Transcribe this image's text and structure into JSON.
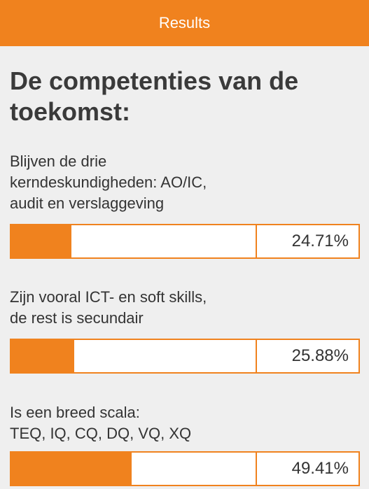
{
  "header": {
    "title": "Results",
    "accent_color": "#f0821e"
  },
  "question": "De competenties van de toekomst:",
  "options": [
    {
      "label": "Blijven de drie\nkerndeskundigheden: AO/IC,\naudit en verslaggeving",
      "percent_text": "24.71%",
      "fraction": 0.2471
    },
    {
      "label": "Zijn vooral ICT- en soft skills,\nde rest is secundair",
      "percent_text": "25.88%",
      "fraction": 0.2588
    },
    {
      "label": "Is een breed scala:\nTEQ, IQ, CQ, DQ, VQ, XQ",
      "percent_text": "49.41%",
      "fraction": 0.4941
    }
  ]
}
